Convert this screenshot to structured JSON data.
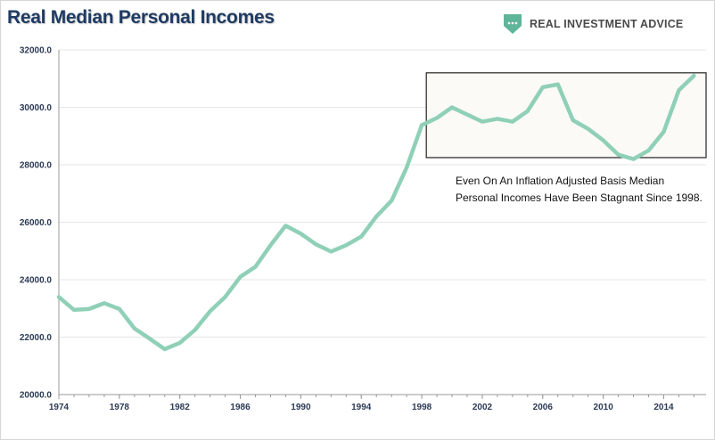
{
  "title": "Real Median Personal Incomes",
  "brand": {
    "name": "REAL INVESTMENT ADVICE",
    "icon": "shield-logo-icon",
    "color": "#5fb59a"
  },
  "annotation": {
    "text": "Even On An Inflation Adjusted Basis Median Personal Incomes Have Been Stagnant Since 1998."
  },
  "colors": {
    "line": "#8fd0b7",
    "highlight_fill": "#fbfaf6",
    "highlight_border": "#222222",
    "grid": "#e6e6e6",
    "axis": "#9a9a9a"
  },
  "chart_data": {
    "type": "line",
    "title": "Real Median Personal Incomes",
    "xlabel": "",
    "ylabel": "",
    "xlim": [
      1974,
      2016.8
    ],
    "ylim": [
      20000,
      32000
    ],
    "grid": true,
    "x_ticks": [
      "1974",
      "1978",
      "1982",
      "1986",
      "1990",
      "1994",
      "1998",
      "2002",
      "2006",
      "2010",
      "2014"
    ],
    "y_ticks": [
      "20000.0",
      "22000.0",
      "24000.0",
      "26000.0",
      "28000.0",
      "30000.0",
      "32000.0"
    ],
    "highlight_range": {
      "x": [
        1998.3,
        2016.8
      ],
      "y": [
        28250,
        31200
      ]
    },
    "series": [
      {
        "x": [
          1974,
          1975,
          1976,
          1977,
          1978,
          1979,
          1980,
          1981,
          1982,
          1983,
          1984,
          1985,
          1986,
          1987,
          1988,
          1989,
          1990,
          1991,
          1992,
          1993,
          1994,
          1995,
          1996,
          1997,
          1998,
          1999,
          2000,
          2001,
          2002,
          2003,
          2004,
          2005,
          2006,
          2007,
          2008,
          2009,
          2010,
          2011,
          2012,
          2013,
          2014,
          2015,
          2016
        ],
        "values": [
          23400,
          22950,
          22980,
          23180,
          22980,
          22300,
          21950,
          21580,
          21800,
          22250,
          22900,
          23400,
          24100,
          24450,
          25200,
          25880,
          25600,
          25230,
          24980,
          25200,
          25500,
          26200,
          26750,
          27900,
          29380,
          29630,
          30000,
          29750,
          29500,
          29600,
          29500,
          29870,
          30700,
          30800,
          29550,
          29250,
          28850,
          28350,
          28200,
          28500,
          29150,
          30600,
          31100
        ]
      }
    ]
  }
}
